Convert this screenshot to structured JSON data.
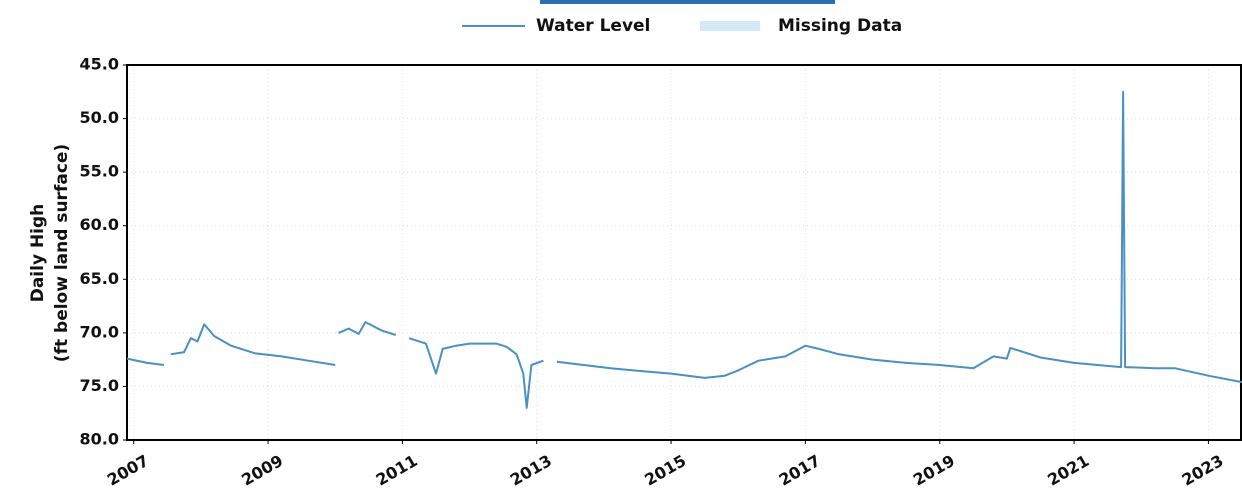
{
  "chart_data": {
    "type": "line",
    "ylabel": [
      "Daily High",
      "(ft below land surface)"
    ],
    "series": [
      {
        "name": "Water Level",
        "color": "#4a90c2",
        "values": [
          72.4,
          72.8,
          73.0,
          null,
          72.0,
          71.8,
          70.5,
          70.8,
          69.2,
          70.3,
          71.2,
          71.9,
          72.2,
          72.6,
          73.0,
          null,
          70.0,
          69.6,
          70.1,
          69.0,
          69.8,
          70.2,
          null,
          70.5,
          71.0,
          73.8,
          71.5,
          71.2,
          71.0,
          71.0,
          71.3,
          72.0,
          73.8,
          77.0,
          73.0,
          72.6,
          null,
          72.7,
          73.0,
          73.3,
          73.6,
          73.8,
          74.2,
          74.0,
          73.5,
          72.6,
          72.2,
          71.2,
          71.5,
          72.0,
          72.5,
          72.8,
          73.0,
          73.3,
          72.2,
          72.4,
          71.4,
          72.3,
          72.8,
          73.2,
          47.5,
          73.2,
          73.3,
          73.3,
          74.0,
          74.6
        ]
      }
    ],
    "x": [
      2006.9,
      2007.2,
      2007.45,
      null,
      2007.55,
      2007.75,
      2007.85,
      2007.95,
      2008.05,
      2008.2,
      2008.45,
      2008.8,
      2009.2,
      2009.6,
      2010.0,
      null,
      2010.05,
      2010.2,
      2010.35,
      2010.45,
      2010.7,
      2010.9,
      null,
      2011.1,
      2011.35,
      2011.5,
      2011.6,
      2011.8,
      2012.0,
      2012.4,
      2012.55,
      2012.7,
      2012.8,
      2012.85,
      2012.92,
      2013.1,
      null,
      2013.3,
      2013.7,
      2014.1,
      2014.6,
      2015.0,
      2015.5,
      2015.8,
      2016.0,
      2016.3,
      2016.7,
      2017.0,
      2017.2,
      2017.5,
      2018.0,
      2018.5,
      2019.0,
      2019.5,
      2019.8,
      2020.0,
      2020.05,
      2020.5,
      2021.0,
      2021.7,
      2021.73,
      2021.76,
      2022.2,
      2022.5,
      2023.0,
      2023.5
    ],
    "xlim": [
      2006.9,
      2023.5
    ],
    "xticks": [
      2007,
      2009,
      2011,
      2013,
      2015,
      2017,
      2019,
      2021,
      2023
    ],
    "ylim": [
      45,
      80
    ],
    "y_reversed": true,
    "yticks": [
      {
        "value": 45,
        "label": "45.0"
      },
      {
        "value": 50,
        "label": "50.0"
      },
      {
        "value": 55,
        "label": "55.0"
      },
      {
        "value": 60,
        "label": "60.0"
      },
      {
        "value": 65,
        "label": "65.0"
      },
      {
        "value": 70,
        "label": "70.0"
      },
      {
        "value": 75,
        "label": "75.0"
      },
      {
        "value": 80,
        "label": "80.0"
      }
    ],
    "grid": true,
    "missing_legend": {
      "name": "Missing Data",
      "color": "#d3eaf4"
    }
  }
}
